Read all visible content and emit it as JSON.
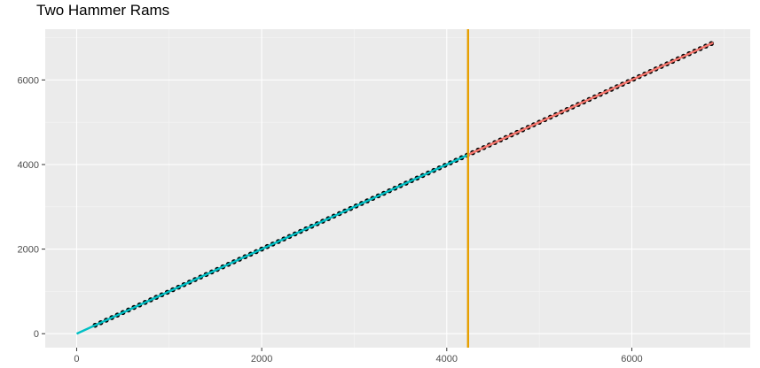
{
  "chart_data": {
    "type": "scatter",
    "title": "Two Hammer Rams",
    "xlabel": "",
    "ylabel": "",
    "xlim": [
      -340,
      7280
    ],
    "ylim": [
      -330,
      7200
    ],
    "x_ticks": [
      0,
      2000,
      4000,
      6000
    ],
    "x_tick_labels": [
      "0",
      "2000",
      "4000",
      "6000"
    ],
    "y_ticks": [
      0,
      2000,
      4000,
      6000
    ],
    "y_tick_labels": [
      "0",
      "2000",
      "4000",
      "6000"
    ],
    "grid": true,
    "legend": "none",
    "points": {
      "x_start": 200,
      "x_end": 6880,
      "step": 60,
      "slope": 1.0,
      "intercept": 0,
      "color": "#000000"
    },
    "fit_lines": [
      {
        "x": [
          0,
          4230
        ],
        "y": [
          0,
          4230
        ],
        "color": "#00BFC4"
      },
      {
        "x": [
          4230,
          6880
        ],
        "y": [
          4230,
          6880
        ],
        "color": "#F8766D"
      }
    ],
    "vline": {
      "x": 4230,
      "color": "#E69F00"
    },
    "colors": {
      "panel_background": "#EBEBEB",
      "grid_major": "#FFFFFF",
      "grid_minor": "#F5F5F5",
      "tick_text": "#4D4D4D"
    }
  }
}
